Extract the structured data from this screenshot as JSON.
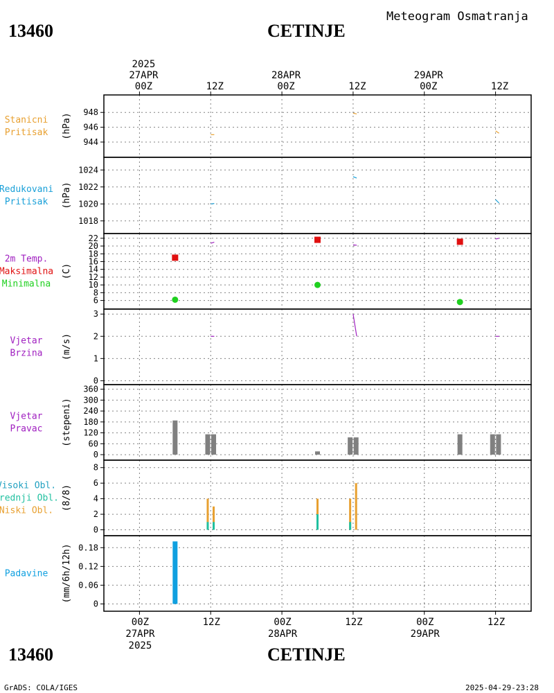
{
  "header": {
    "station_id": "13460",
    "station_name": "CETINJE",
    "subtitle": "Meteogram Osmatranja"
  },
  "footer": {
    "station_id": "13460",
    "station_name": "CETINJE",
    "credit": "GrADS: COLA/IGES",
    "timestamp": "2025-04-29-23:28"
  },
  "colors": {
    "pressure": "#e8a030",
    "reduced_pressure": "#1aa0d8",
    "tmax": "#e01010",
    "tmin": "#20d020",
    "wind": "#a020c0",
    "dir_bar": "#808080",
    "low_cloud": "#e8a030",
    "mid_cloud": "#20c0a0",
    "high_cloud": "#20a0c0",
    "precip": "#10a0e0"
  },
  "chart_data": {
    "type": "meteogram",
    "time_axis": {
      "hours_range": [
        -6,
        66
      ],
      "top_ticks": [
        {
          "hour": 0,
          "lines": [
            "2025",
            "27APR",
            "00Z"
          ]
        },
        {
          "hour": 12,
          "lines": [
            "12Z"
          ]
        },
        {
          "hour": 24,
          "lines": [
            "28APR",
            "00Z"
          ]
        },
        {
          "hour": 36,
          "lines": [
            "12Z"
          ]
        },
        {
          "hour": 48,
          "lines": [
            "29APR",
            "00Z"
          ]
        },
        {
          "hour": 60,
          "lines": [
            "12Z"
          ]
        }
      ],
      "bottom_ticks": [
        {
          "hour": 0,
          "lines": [
            "00Z",
            "27APR",
            "2025"
          ]
        },
        {
          "hour": 12,
          "lines": [
            "12Z"
          ]
        },
        {
          "hour": 24,
          "lines": [
            "00Z",
            "28APR"
          ]
        },
        {
          "hour": 36,
          "lines": [
            "12Z"
          ]
        },
        {
          "hour": 48,
          "lines": [
            "00Z",
            "29APR"
          ]
        },
        {
          "hour": 60,
          "lines": [
            "12Z"
          ]
        }
      ]
    },
    "panels": [
      {
        "id": "station-pressure",
        "labels": [
          {
            "text": "Stanicni",
            "color": "#e8a030"
          },
          {
            "text": "Pritisak",
            "color": "#e8a030"
          }
        ],
        "unit": "(hPa)",
        "ylim": [
          942.5,
          949.8
        ],
        "yticks": [
          944,
          946,
          948
        ],
        "series": [
          {
            "color": "#e8a030",
            "points": [
              [
                12,
                945.0
              ],
              [
                12.6,
                945.0
              ]
            ]
          },
          {
            "color": "#e8a030",
            "points": [
              [
                36,
                947.9
              ],
              [
                36.6,
                947.8
              ]
            ]
          },
          {
            "color": "#e8a030",
            "points": [
              [
                60,
                945.5
              ],
              [
                60.6,
                945.2
              ]
            ]
          }
        ]
      },
      {
        "id": "reduced-pressure",
        "labels": [
          {
            "text": "Redukovani",
            "color": "#1aa0d8"
          },
          {
            "text": "Pritisak",
            "color": "#1aa0d8"
          }
        ],
        "unit": "(hPa)",
        "ylim": [
          1017.0,
          1025.0
        ],
        "yticks": [
          1018,
          1020,
          1022,
          1024
        ],
        "series": [
          {
            "color": "#1aa0d8",
            "points": [
              [
                12,
                1020.0
              ],
              [
                12.6,
                1020.05
              ]
            ]
          },
          {
            "color": "#1aa0d8",
            "points": [
              [
                36,
                1023.2
              ],
              [
                36.6,
                1023.05
              ]
            ]
          },
          {
            "color": "#1aa0d8",
            "points": [
              [
                60,
                1020.5
              ],
              [
                60.6,
                1020.1
              ]
            ]
          }
        ]
      },
      {
        "id": "temperature",
        "labels": [
          {
            "text": "2m Temp.",
            "color": "#a020c0"
          },
          {
            "text": "Maksimalna",
            "color": "#e01010"
          },
          {
            "text": "Minimalna",
            "color": "#20d020"
          }
        ],
        "unit": "(C)",
        "ylim": [
          4.5,
          22.5
        ],
        "yticks": [
          6,
          8,
          10,
          12,
          14,
          16,
          18,
          20,
          22
        ],
        "series": [
          {
            "color": "#a020c0",
            "points": [
              [
                12,
                20.7
              ],
              [
                12.6,
                21.0
              ]
            ]
          },
          {
            "color": "#a020c0",
            "points": [
              [
                36,
                20.3
              ],
              [
                36.6,
                20.2
              ]
            ]
          },
          {
            "color": "#a020c0",
            "points": [
              [
                60,
                21.8
              ],
              [
                60.6,
                22.0
              ]
            ]
          }
        ],
        "tmax": [
          [
            6,
            17.0
          ],
          [
            30,
            21.6
          ],
          [
            54,
            21.1
          ]
        ],
        "tmin": [
          [
            6,
            6.2
          ],
          [
            30,
            10.0
          ],
          [
            54,
            5.6
          ]
        ]
      },
      {
        "id": "wind-speed",
        "labels": [
          {
            "text": "Vjetar",
            "color": "#a020c0"
          },
          {
            "text": "Brzina",
            "color": "#a020c0"
          }
        ],
        "unit": "(m/s)",
        "ylim": [
          -0.05,
          3.1
        ],
        "yticks": [
          0,
          1,
          2,
          3
        ],
        "series": [
          {
            "color": "#a020c0",
            "points": [
              [
                12,
                2.0
              ],
              [
                12.6,
                2.0
              ]
            ]
          },
          {
            "color": "#a020c0",
            "points": [
              [
                36,
                3.0
              ],
              [
                36.6,
                2.0
              ]
            ]
          },
          {
            "color": "#a020c0",
            "points": [
              [
                60,
                2.0
              ],
              [
                60.6,
                2.0
              ]
            ]
          }
        ]
      },
      {
        "id": "wind-direction",
        "labels": [
          {
            "text": "Vjetar",
            "color": "#a020c0"
          },
          {
            "text": "Pravac",
            "color": "#a020c0"
          }
        ],
        "unit": "(stepeni)",
        "ylim": [
          -15,
          370
        ],
        "yticks": [
          0,
          60,
          120,
          180,
          240,
          300,
          360
        ],
        "bars": [
          [
            6,
            188
          ],
          [
            11.5,
            112
          ],
          [
            12.5,
            112
          ],
          [
            30,
            18
          ],
          [
            35.5,
            95
          ],
          [
            36.5,
            95
          ],
          [
            54,
            112
          ],
          [
            59.5,
            112
          ],
          [
            60.5,
            112
          ]
        ]
      },
      {
        "id": "clouds",
        "labels": [
          {
            "text": "Visoki Obl.",
            "color": "#20a0c0"
          },
          {
            "text": "Srednji Obl.",
            "color": "#20c0a0"
          },
          {
            "text": "Niski Obl.",
            "color": "#e8a030"
          }
        ],
        "unit": "(8/8)",
        "ylim": [
          -0.4,
          8.6
        ],
        "yticks": [
          0,
          2,
          4,
          6,
          8
        ],
        "low": [
          [
            11.5,
            4
          ],
          [
            12.5,
            3
          ],
          [
            30,
            4
          ],
          [
            35.5,
            4
          ],
          [
            36.5,
            6
          ]
        ],
        "mid": [
          [
            11.5,
            1
          ],
          [
            12.5,
            1
          ],
          [
            30,
            2
          ],
          [
            35.5,
            1
          ],
          [
            36.5,
            0
          ]
        ]
      },
      {
        "id": "precipitation",
        "labels": [
          {
            "text": "Padavine",
            "color": "#10a0e0"
          }
        ],
        "unit": "(mm/6h/12h)",
        "ylim": [
          -0.01,
          0.205
        ],
        "yticks": [
          0,
          0.06,
          0.12,
          0.18
        ],
        "bars": [
          [
            6,
            0.2
          ]
        ]
      }
    ]
  }
}
